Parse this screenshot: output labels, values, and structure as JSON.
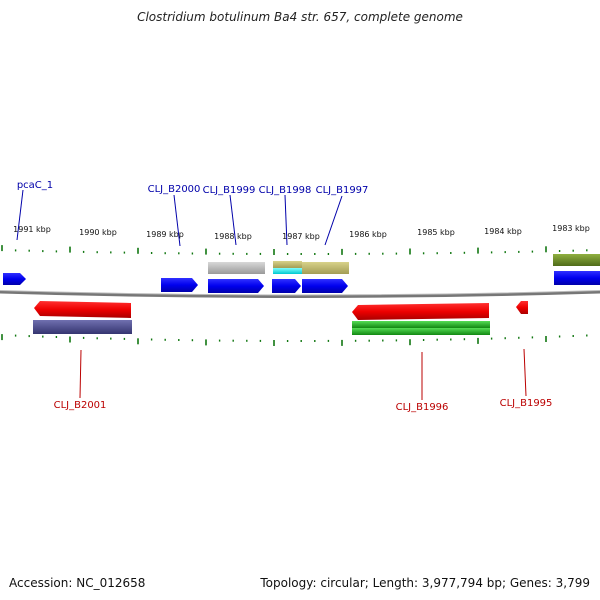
{
  "title": "Clostridium botulinum Ba4 str. 657, complete genome",
  "footer": {
    "accession": "Accession: NC_012658",
    "summary": "Topology: circular; Length: 3,977,794 bp; Genes: 3,799"
  },
  "scale_labels": [
    "1991 kbp",
    "1990 kbp",
    "1989 kbp",
    "1988 kbp",
    "1987 kbp",
    "1986 kbp",
    "1985 kbp",
    "1984 kbp",
    "1983 kbp"
  ],
  "colors": {
    "forward_gene": "#0000ee",
    "reverse_gene": "#ee0000",
    "forward_label": "#0000aa",
    "reverse_label": "#bb0000",
    "tick": "#117711",
    "backbone": "#777777",
    "cds_grey": "#bbbbbb",
    "cds_khaki": "#bdb76b",
    "cds_cyan": "#00e5ee",
    "cds_slate": "#4b4b8a",
    "cds_green": "#22aa22",
    "cds_olive": "#6b8e23"
  },
  "gene_labels": {
    "forward": [
      "pcaC_1",
      "CLJ_B2000",
      "CLJ_B1999",
      "CLJ_B1998",
      "CLJ_B1997"
    ],
    "reverse": [
      "CLJ_B2001",
      "CLJ_B1996",
      "CLJ_B1995"
    ]
  }
}
